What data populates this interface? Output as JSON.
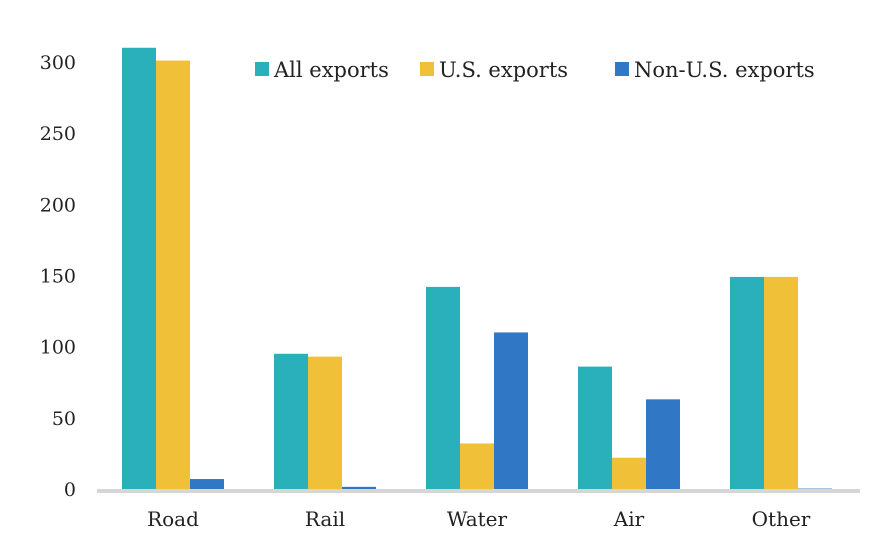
{
  "chart_data": {
    "type": "bar",
    "title": "",
    "xlabel": "",
    "ylabel": "",
    "ylim": [
      0,
      300
    ],
    "yticks": [
      0,
      50,
      100,
      150,
      200,
      250,
      300
    ],
    "grid": false,
    "legend_position": "top-right",
    "categories": [
      "Road",
      "Rail",
      "Water",
      "Air",
      "Other"
    ],
    "series": [
      {
        "name": "All exports",
        "color": "#2ab0bb",
        "values": [
          310,
          95,
          142,
          86,
          149
        ]
      },
      {
        "name": "U.S. exports",
        "color": "#f0c038",
        "values": [
          301,
          93,
          32,
          22,
          149
        ]
      },
      {
        "name": "Non-U.S. exports",
        "color": "#3078c6",
        "values": [
          7,
          1.5,
          110,
          63,
          0.3
        ]
      }
    ]
  }
}
